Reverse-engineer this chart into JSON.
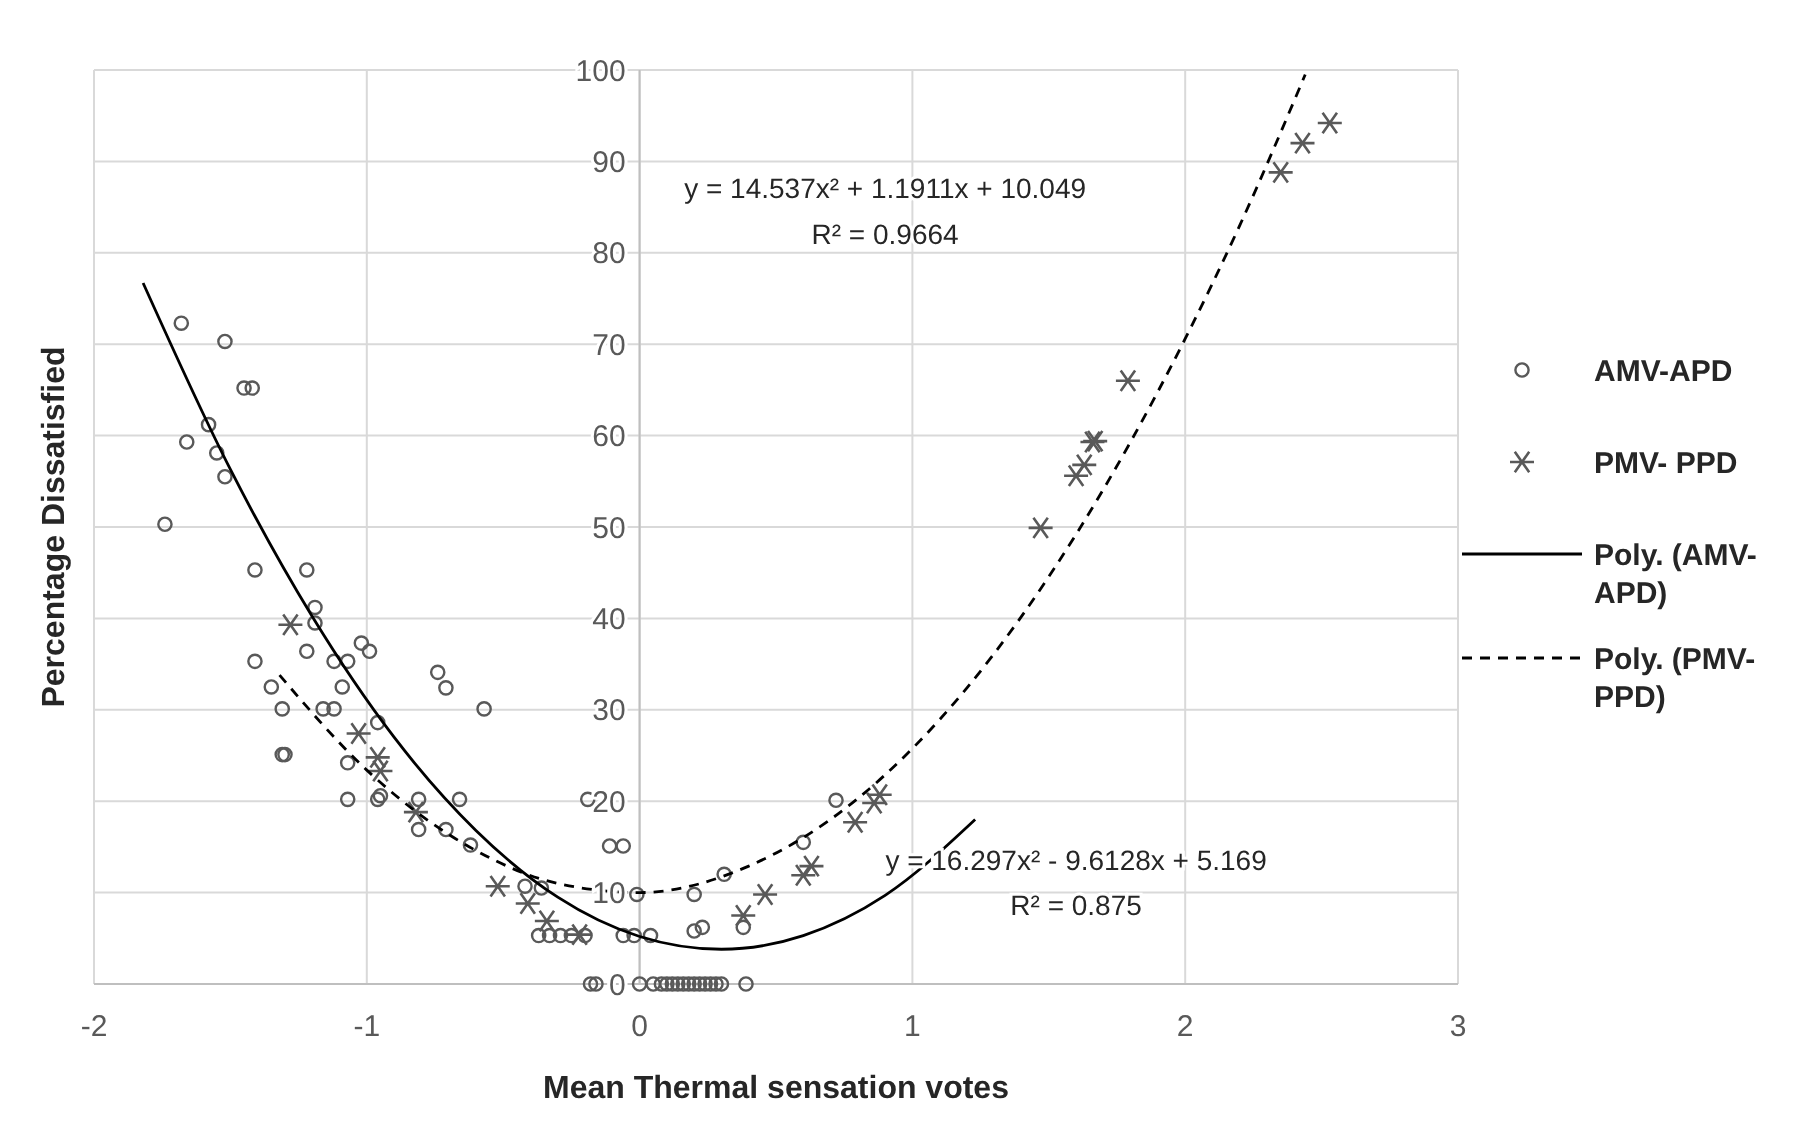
{
  "chart_data": {
    "type": "scatter",
    "xlabel": "Mean Thermal sensation votes",
    "ylabel": "Percentage Dissatisfied",
    "xlim": [
      -2,
      3
    ],
    "ylim": [
      0,
      100
    ],
    "xticks": [
      -2,
      -1,
      0,
      1,
      2,
      3
    ],
    "yticks": [
      0,
      10,
      20,
      30,
      40,
      50,
      60,
      70,
      80,
      90,
      100
    ],
    "grid": true,
    "legend": "right",
    "annotations": [
      "y = 14.537x² + 1.1911x + 10.049",
      "R² = 0.9664",
      "y = 16.297x² - 9.6128x + 5.169",
      "R² = 0.875"
    ],
    "series": [
      {
        "name": "AMV-APD",
        "color": "#595959",
        "marker": "circle",
        "x": [
          -1.68,
          -1.52,
          -1.45,
          -1.42,
          -1.58,
          -1.66,
          -1.55,
          -1.52,
          -1.74,
          -1.41,
          -1.22,
          -1.19,
          -1.19,
          -1.41,
          -1.22,
          -1.12,
          -1.07,
          -1.02,
          -0.99,
          -1.35,
          -1.31,
          -1.31,
          -1.3,
          -1.09,
          -1.16,
          -1.12,
          -0.96,
          -1.07,
          -1.07,
          -0.96,
          -0.74,
          -0.71,
          -0.57,
          -0.66,
          -0.71,
          -0.81,
          -0.81,
          -0.62,
          -0.11,
          -0.06,
          -0.19,
          -0.95,
          -0.42,
          -0.36,
          -0.01,
          0.2,
          0.31,
          0.72,
          0.6,
          -0.37,
          -0.33,
          -0.29,
          -0.25,
          -0.2,
          -0.06,
          -0.02,
          0.04,
          0.2,
          0.23,
          -0.18,
          -0.16,
          0.0,
          0.05,
          0.08,
          0.1,
          0.12,
          0.14,
          0.16,
          0.18,
          0.2,
          0.22,
          0.24,
          0.26,
          0.28,
          0.3,
          0.39,
          0.38
        ],
        "values": [
          72.3,
          70.3,
          65.2,
          65.2,
          61.2,
          59.3,
          58.1,
          55.5,
          50.3,
          45.3,
          45.3,
          41.2,
          39.5,
          35.3,
          36.4,
          35.3,
          35.3,
          37.3,
          36.4,
          32.5,
          30.1,
          25.1,
          25.1,
          32.5,
          30.1,
          30.1,
          28.6,
          24.2,
          20.2,
          20.2,
          34.1,
          32.4,
          30.1,
          20.2,
          16.9,
          16.9,
          20.2,
          15.2,
          15.1,
          15.1,
          20.2,
          20.6,
          10.7,
          10.5,
          9.8,
          9.8,
          12.0,
          20.1,
          15.5,
          5.3,
          5.3,
          5.3,
          5.3,
          5.3,
          5.3,
          5.3,
          5.3,
          5.8,
          6.2,
          0,
          0,
          0,
          0,
          0,
          0,
          0,
          0,
          0,
          0,
          0,
          0,
          0,
          0,
          0,
          0,
          0,
          6.2
        ]
      },
      {
        "name": "PMV- PPD",
        "color": "#595959",
        "marker": "cross",
        "x": [
          -1.28,
          -1.03,
          -0.96,
          -0.95,
          -0.82,
          -0.52,
          -0.41,
          -0.34,
          -0.22,
          0.38,
          0.46,
          0.6,
          0.63,
          0.79,
          0.86,
          0.88,
          1.47,
          1.6,
          1.63,
          1.66,
          1.67,
          1.79,
          2.35,
          2.43,
          2.53
        ],
        "values": [
          39.3,
          27.4,
          24.8,
          23.3,
          18.8,
          10.7,
          8.8,
          6.9,
          5.4,
          7.5,
          9.8,
          11.9,
          12.9,
          17.7,
          19.8,
          20.7,
          49.9,
          55.6,
          56.8,
          59.3,
          59.4,
          66.0,
          88.8,
          92.0,
          94.2
        ]
      },
      {
        "name": "Poly. (AMV-APD)",
        "type": "line",
        "color": "#000000",
        "marker": "none",
        "line_style": "solid",
        "x": [
          -1.82,
          -1.5,
          -1.2,
          -0.9,
          -0.6,
          -0.3,
          0,
          0.3,
          0.6,
          0.9,
          1.23
        ],
        "values": [
          76.7,
          56.3,
          40.2,
          27,
          16.8,
          9.5,
          5.2,
          3.8,
          5.3,
          9.7,
          18
        ]
      },
      {
        "name": "Poly. (PMV-PPD)",
        "type": "line",
        "color": "#000000",
        "marker": "none",
        "line_style": "dashed",
        "x": [
          -1.32,
          -1.0,
          -0.6,
          -0.3,
          0,
          0.4,
          0.8,
          1.2,
          1.6,
          2.0,
          2.2,
          2.44
        ],
        "values": [
          33.8,
          23.4,
          14.6,
          11,
          10,
          12.9,
          20.3,
          32.4,
          49.2,
          70.6,
          83,
          99.5
        ]
      }
    ]
  }
}
